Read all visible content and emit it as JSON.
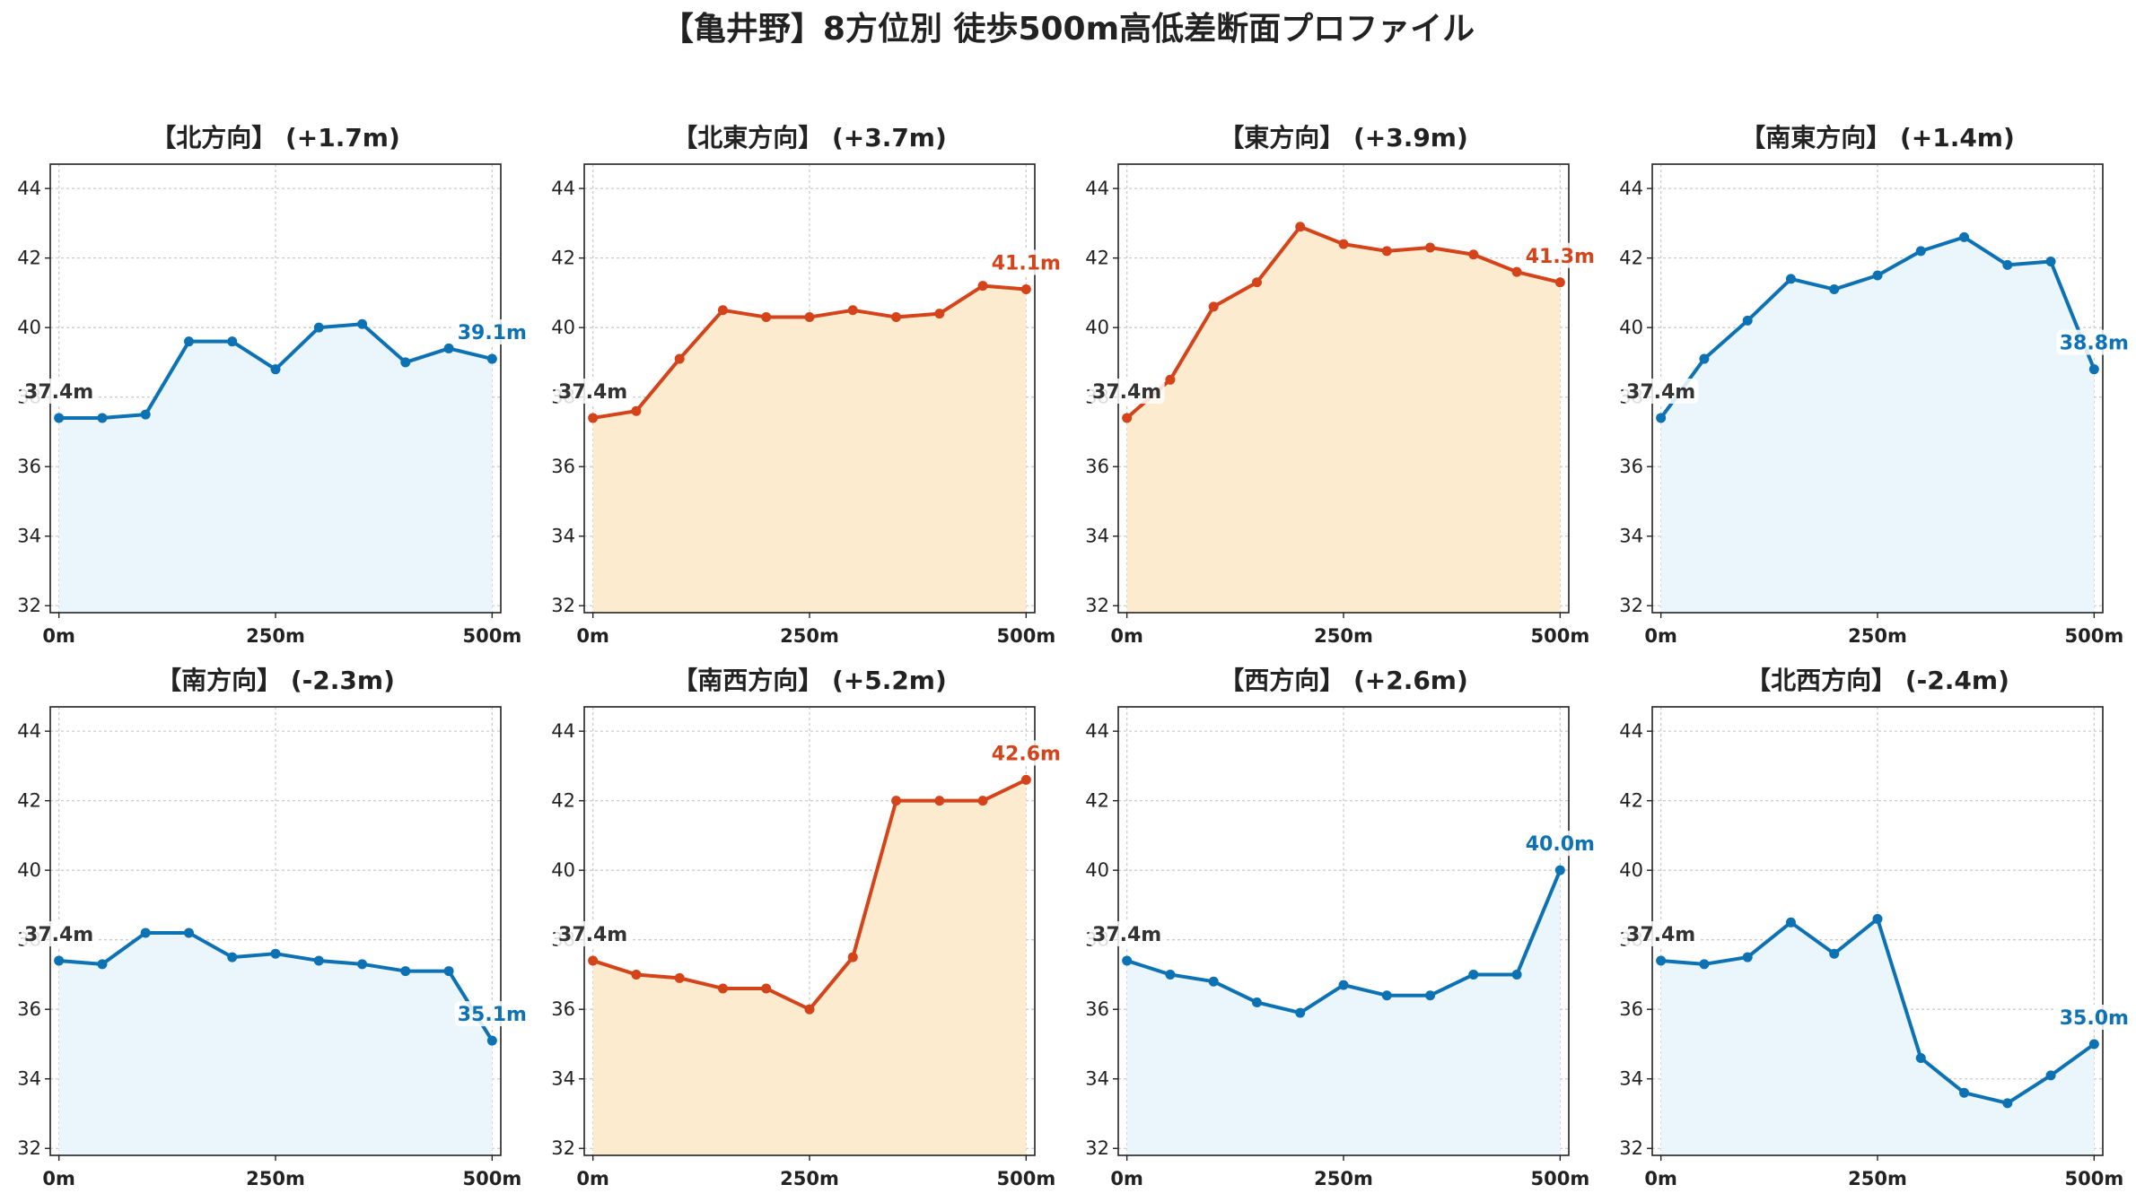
{
  "figure_title": "【亀井野】8方位別 徒歩500m高低差断面プロファイル",
  "colors": {
    "up_line": "#d4431a",
    "up_fill": "#fdebd0",
    "down_line": "#0d72b3",
    "down_fill": "#eaf5fc",
    "start_label": "#333333"
  },
  "chart_data": [
    {
      "type": "area",
      "title": "【北方向】 (+1.7m)",
      "trend": "down",
      "x": [
        0,
        50,
        100,
        150,
        200,
        250,
        300,
        350,
        400,
        450,
        500
      ],
      "y": [
        37.4,
        37.4,
        37.5,
        39.6,
        39.6,
        38.8,
        40.0,
        40.1,
        39.0,
        39.4,
        39.1
      ],
      "start_label": "37.4m",
      "end_label": "39.1m",
      "xticks": [
        "0m",
        "250m",
        "500m"
      ],
      "yticks": [
        "32",
        "34",
        "36",
        "38",
        "40",
        "42",
        "44"
      ],
      "ylim": [
        31.8,
        44.7
      ],
      "xlim": [
        -10,
        510
      ],
      "grid": true
    },
    {
      "type": "area",
      "title": "【北東方向】 (+3.7m)",
      "trend": "up",
      "x": [
        0,
        50,
        100,
        150,
        200,
        250,
        300,
        350,
        400,
        450,
        500
      ],
      "y": [
        37.4,
        37.6,
        39.1,
        40.5,
        40.3,
        40.3,
        40.5,
        40.3,
        40.4,
        41.2,
        41.1
      ],
      "start_label": "37.4m",
      "end_label": "41.1m",
      "xticks": [
        "0m",
        "250m",
        "500m"
      ],
      "yticks": [
        "32",
        "34",
        "36",
        "38",
        "40",
        "42",
        "44"
      ],
      "ylim": [
        31.8,
        44.7
      ],
      "xlim": [
        -10,
        510
      ],
      "grid": true
    },
    {
      "type": "area",
      "title": "【東方向】 (+3.9m)",
      "trend": "up",
      "x": [
        0,
        50,
        100,
        150,
        200,
        250,
        300,
        350,
        400,
        450,
        500
      ],
      "y": [
        37.4,
        38.5,
        40.6,
        41.3,
        42.9,
        42.4,
        42.2,
        42.3,
        42.1,
        41.6,
        41.3
      ],
      "start_label": "37.4m",
      "end_label": "41.3m",
      "xticks": [
        "0m",
        "250m",
        "500m"
      ],
      "yticks": [
        "32",
        "34",
        "36",
        "38",
        "40",
        "42",
        "44"
      ],
      "ylim": [
        31.8,
        44.7
      ],
      "xlim": [
        -10,
        510
      ],
      "grid": true
    },
    {
      "type": "area",
      "title": "【南東方向】 (+1.4m)",
      "trend": "down",
      "x": [
        0,
        50,
        100,
        150,
        200,
        250,
        300,
        350,
        400,
        450,
        500
      ],
      "y": [
        37.4,
        39.1,
        40.2,
        41.4,
        41.1,
        41.5,
        42.2,
        42.6,
        41.8,
        41.9,
        38.8
      ],
      "start_label": "37.4m",
      "end_label": "38.8m",
      "xticks": [
        "0m",
        "250m",
        "500m"
      ],
      "yticks": [
        "32",
        "34",
        "36",
        "38",
        "40",
        "42",
        "44"
      ],
      "ylim": [
        31.8,
        44.7
      ],
      "xlim": [
        -10,
        510
      ],
      "grid": true
    },
    {
      "type": "area",
      "title": "【南方向】 (-2.3m)",
      "trend": "down",
      "x": [
        0,
        50,
        100,
        150,
        200,
        250,
        300,
        350,
        400,
        450,
        500
      ],
      "y": [
        37.4,
        37.3,
        38.2,
        38.2,
        37.5,
        37.6,
        37.4,
        37.3,
        37.1,
        37.1,
        35.1
      ],
      "start_label": "37.4m",
      "end_label": "35.1m",
      "xticks": [
        "0m",
        "250m",
        "500m"
      ],
      "yticks": [
        "32",
        "34",
        "36",
        "38",
        "40",
        "42",
        "44"
      ],
      "ylim": [
        31.8,
        44.7
      ],
      "xlim": [
        -10,
        510
      ],
      "grid": true
    },
    {
      "type": "area",
      "title": "【南西方向】 (+5.2m)",
      "trend": "up",
      "x": [
        0,
        50,
        100,
        150,
        200,
        250,
        300,
        350,
        400,
        450,
        500
      ],
      "y": [
        37.4,
        37.0,
        36.9,
        36.6,
        36.6,
        36.0,
        37.5,
        42.0,
        42.0,
        42.0,
        42.6
      ],
      "start_label": "37.4m",
      "end_label": "42.6m",
      "xticks": [
        "0m",
        "250m",
        "500m"
      ],
      "yticks": [
        "32",
        "34",
        "36",
        "38",
        "40",
        "42",
        "44"
      ],
      "ylim": [
        31.8,
        44.7
      ],
      "xlim": [
        -10,
        510
      ],
      "grid": true
    },
    {
      "type": "area",
      "title": "【西方向】 (+2.6m)",
      "trend": "down",
      "x": [
        0,
        50,
        100,
        150,
        200,
        250,
        300,
        350,
        400,
        450,
        500
      ],
      "y": [
        37.4,
        37.0,
        36.8,
        36.2,
        35.9,
        36.7,
        36.4,
        36.4,
        37.0,
        37.0,
        40.0
      ],
      "start_label": "37.4m",
      "end_label": "40.0m",
      "xticks": [
        "0m",
        "250m",
        "500m"
      ],
      "yticks": [
        "32",
        "34",
        "36",
        "38",
        "40",
        "42",
        "44"
      ],
      "ylim": [
        31.8,
        44.7
      ],
      "xlim": [
        -10,
        510
      ],
      "grid": true
    },
    {
      "type": "area",
      "title": "【北西方向】 (-2.4m)",
      "trend": "down",
      "x": [
        0,
        50,
        100,
        150,
        200,
        250,
        300,
        350,
        400,
        450,
        500
      ],
      "y": [
        37.4,
        37.3,
        37.5,
        38.5,
        37.6,
        38.6,
        34.6,
        33.6,
        33.3,
        34.1,
        35.0
      ],
      "start_label": "37.4m",
      "end_label": "35.0m",
      "xticks": [
        "0m",
        "250m",
        "500m"
      ],
      "yticks": [
        "32",
        "34",
        "36",
        "38",
        "40",
        "42",
        "44"
      ],
      "ylim": [
        31.8,
        44.7
      ],
      "xlim": [
        -10,
        510
      ],
      "grid": true
    }
  ]
}
